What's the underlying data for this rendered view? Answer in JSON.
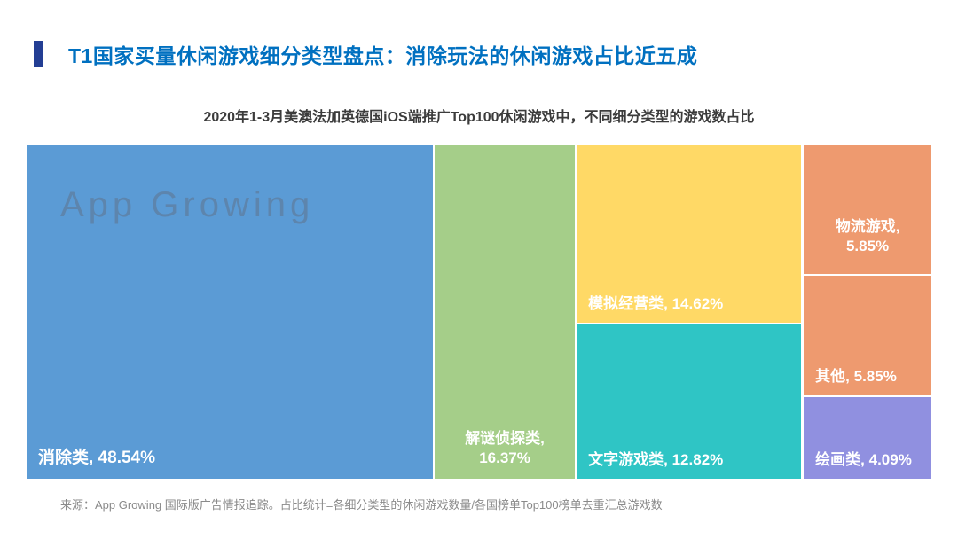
{
  "header": {
    "title": "T1国家买量休闲游戏细分类型盘点：消除玩法的休闲游戏占比近五成",
    "title_color": "#0070C0",
    "accent_color": "#233E94"
  },
  "subtitle": "2020年1-3月美澳法加英德国iOS端推广Top100休闲游戏中，不同细分类型的游戏数占比",
  "watermark": "App Growing",
  "source": "来源：App Growing 国际版广告情报追踪。占比统计=各细分类型的休闲游戏数量/各国榜单Top100榜单去重汇总游戏数",
  "chart_data": {
    "type": "treemap",
    "title": "2020年1-3月美澳法加英德国iOS端推广Top100休闲游戏中，不同细分类型的游戏数占比",
    "categories": [
      "消除类",
      "解谜侦探类",
      "模拟经营类",
      "文字游戏类",
      "物流游戏",
      "其他",
      "绘画类"
    ],
    "values": [
      48.54,
      16.37,
      14.62,
      12.82,
      5.85,
      5.85,
      4.09
    ],
    "unit": "%",
    "legend_position": "none",
    "tiles": [
      {
        "name": "消除类",
        "value": 48.54,
        "label": "消除类, 48.54%",
        "color": "#5B9BD5"
      },
      {
        "name": "解谜侦探类",
        "value": 16.37,
        "label": "解谜侦探类,\n16.37%",
        "color": "#A5CE89"
      },
      {
        "name": "模拟经营类",
        "value": 14.62,
        "label": "模拟经营类, 14.62%",
        "color": "#FFD966"
      },
      {
        "name": "文字游戏类",
        "value": 12.82,
        "label": "文字游戏类, 12.82%",
        "color": "#2FC5C5"
      },
      {
        "name": "物流游戏",
        "value": 5.85,
        "label": "物流游戏,\n5.85%",
        "color": "#EE9A6F"
      },
      {
        "name": "其他",
        "value": 5.85,
        "label": "其他, 5.85%",
        "color": "#EE9A6F"
      },
      {
        "name": "绘画类",
        "value": 4.09,
        "label": "绘画类, 4.09%",
        "color": "#9090E0"
      }
    ]
  }
}
